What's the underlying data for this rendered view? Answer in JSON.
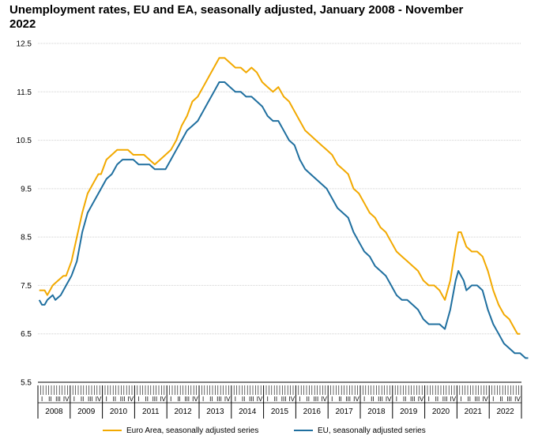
{
  "title": "Unemployment rates, EU and EA, seasonally adjusted, January 2008 - November 2022",
  "chart_data": {
    "type": "line",
    "title": "Unemployment rates, EU and EA, seasonally adjusted, January 2008 - November 2022",
    "xlabel": "",
    "ylabel": "",
    "ylim": [
      5.5,
      12.5
    ],
    "yticks": [
      "5.5",
      "6.5",
      "7.5",
      "8.5",
      "9.5",
      "10.5",
      "11.5",
      "12.5"
    ],
    "years": [
      "2008",
      "2009",
      "2010",
      "2011",
      "2012",
      "2013",
      "2014",
      "2015",
      "2016",
      "2017",
      "2018",
      "2019",
      "2020",
      "2021",
      "2022"
    ],
    "quarters": [
      "I",
      "II",
      "III",
      "IV"
    ],
    "grid": "horizontal",
    "legend_position": "bottom",
    "x_unit": "months since January 2008 (0 = Jan 2008, 178 = Nov 2022)",
    "series": [
      {
        "name": "Euro Area, seasonally adjusted series",
        "color": "#f2a900",
        "points": [
          [
            0,
            7.4
          ],
          [
            2,
            7.4
          ],
          [
            3,
            7.3
          ],
          [
            5,
            7.5
          ],
          [
            7,
            7.6
          ],
          [
            9,
            7.7
          ],
          [
            10,
            7.7
          ],
          [
            12,
            8.0
          ],
          [
            14,
            8.5
          ],
          [
            16,
            9.0
          ],
          [
            18,
            9.4
          ],
          [
            20,
            9.6
          ],
          [
            22,
            9.8
          ],
          [
            23,
            9.8
          ],
          [
            25,
            10.1
          ],
          [
            27,
            10.2
          ],
          [
            29,
            10.3
          ],
          [
            31,
            10.3
          ],
          [
            33,
            10.3
          ],
          [
            35,
            10.2
          ],
          [
            37,
            10.2
          ],
          [
            39,
            10.2
          ],
          [
            41,
            10.1
          ],
          [
            43,
            10.0
          ],
          [
            45,
            10.1
          ],
          [
            47,
            10.2
          ],
          [
            49,
            10.3
          ],
          [
            51,
            10.5
          ],
          [
            53,
            10.8
          ],
          [
            55,
            11.0
          ],
          [
            57,
            11.3
          ],
          [
            59,
            11.4
          ],
          [
            61,
            11.6
          ],
          [
            63,
            11.8
          ],
          [
            65,
            12.0
          ],
          [
            67,
            12.2
          ],
          [
            69,
            12.2
          ],
          [
            71,
            12.1
          ],
          [
            73,
            12.0
          ],
          [
            75,
            12.0
          ],
          [
            77,
            11.9
          ],
          [
            79,
            12.0
          ],
          [
            81,
            11.9
          ],
          [
            83,
            11.7
          ],
          [
            85,
            11.6
          ],
          [
            87,
            11.5
          ],
          [
            89,
            11.6
          ],
          [
            91,
            11.4
          ],
          [
            93,
            11.3
          ],
          [
            95,
            11.1
          ],
          [
            97,
            10.9
          ],
          [
            99,
            10.7
          ],
          [
            101,
            10.6
          ],
          [
            103,
            10.5
          ],
          [
            105,
            10.4
          ],
          [
            107,
            10.3
          ],
          [
            109,
            10.2
          ],
          [
            111,
            10.0
          ],
          [
            113,
            9.9
          ],
          [
            115,
            9.8
          ],
          [
            117,
            9.5
          ],
          [
            119,
            9.4
          ],
          [
            121,
            9.2
          ],
          [
            123,
            9.0
          ],
          [
            125,
            8.9
          ],
          [
            127,
            8.7
          ],
          [
            129,
            8.6
          ],
          [
            131,
            8.4
          ],
          [
            133,
            8.2
          ],
          [
            135,
            8.1
          ],
          [
            137,
            8.0
          ],
          [
            139,
            7.9
          ],
          [
            141,
            7.8
          ],
          [
            143,
            7.6
          ],
          [
            145,
            7.5
          ],
          [
            147,
            7.5
          ],
          [
            149,
            7.4
          ],
          [
            151,
            7.2
          ],
          [
            153,
            7.6
          ],
          [
            155,
            8.3
          ],
          [
            156,
            8.6
          ],
          [
            157,
            8.6
          ],
          [
            159,
            8.3
          ],
          [
            161,
            8.2
          ],
          [
            163,
            8.2
          ],
          [
            165,
            8.1
          ],
          [
            167,
            7.8
          ],
          [
            169,
            7.4
          ],
          [
            171,
            7.1
          ],
          [
            173,
            6.9
          ],
          [
            175,
            6.8
          ],
          [
            176,
            6.7
          ],
          [
            177,
            6.6
          ],
          [
            178,
            6.5
          ],
          [
            179,
            6.5
          ]
        ]
      },
      {
        "name": "EU, seasonally adjusted series",
        "color": "#1f6f9f",
        "points": [
          [
            0,
            7.2
          ],
          [
            1,
            7.1
          ],
          [
            2,
            7.1
          ],
          [
            3,
            7.2
          ],
          [
            5,
            7.3
          ],
          [
            6,
            7.2
          ],
          [
            8,
            7.3
          ],
          [
            10,
            7.5
          ],
          [
            12,
            7.7
          ],
          [
            14,
            8.0
          ],
          [
            16,
            8.6
          ],
          [
            18,
            9.0
          ],
          [
            20,
            9.2
          ],
          [
            22,
            9.4
          ],
          [
            23,
            9.5
          ],
          [
            25,
            9.7
          ],
          [
            27,
            9.8
          ],
          [
            29,
            10.0
          ],
          [
            31,
            10.1
          ],
          [
            33,
            10.1
          ],
          [
            35,
            10.1
          ],
          [
            37,
            10.0
          ],
          [
            39,
            10.0
          ],
          [
            41,
            10.0
          ],
          [
            43,
            9.9
          ],
          [
            45,
            9.9
          ],
          [
            47,
            9.9
          ],
          [
            49,
            10.1
          ],
          [
            51,
            10.3
          ],
          [
            53,
            10.5
          ],
          [
            55,
            10.7
          ],
          [
            57,
            10.8
          ],
          [
            59,
            10.9
          ],
          [
            61,
            11.1
          ],
          [
            63,
            11.3
          ],
          [
            65,
            11.5
          ],
          [
            67,
            11.7
          ],
          [
            69,
            11.7
          ],
          [
            71,
            11.6
          ],
          [
            73,
            11.5
          ],
          [
            75,
            11.5
          ],
          [
            77,
            11.4
          ],
          [
            79,
            11.4
          ],
          [
            81,
            11.3
          ],
          [
            83,
            11.2
          ],
          [
            85,
            11.0
          ],
          [
            87,
            10.9
          ],
          [
            89,
            10.9
          ],
          [
            91,
            10.7
          ],
          [
            93,
            10.5
          ],
          [
            95,
            10.4
          ],
          [
            97,
            10.1
          ],
          [
            99,
            9.9
          ],
          [
            101,
            9.8
          ],
          [
            103,
            9.7
          ],
          [
            105,
            9.6
          ],
          [
            107,
            9.5
          ],
          [
            109,
            9.3
          ],
          [
            111,
            9.1
          ],
          [
            113,
            9.0
          ],
          [
            115,
            8.9
          ],
          [
            117,
            8.6
          ],
          [
            119,
            8.4
          ],
          [
            121,
            8.2
          ],
          [
            123,
            8.1
          ],
          [
            125,
            7.9
          ],
          [
            127,
            7.8
          ],
          [
            129,
            7.7
          ],
          [
            131,
            7.5
          ],
          [
            133,
            7.3
          ],
          [
            135,
            7.2
          ],
          [
            137,
            7.2
          ],
          [
            139,
            7.1
          ],
          [
            141,
            7.0
          ],
          [
            143,
            6.8
          ],
          [
            145,
            6.7
          ],
          [
            147,
            6.7
          ],
          [
            149,
            6.7
          ],
          [
            151,
            6.6
          ],
          [
            153,
            7.0
          ],
          [
            155,
            7.6
          ],
          [
            156,
            7.8
          ],
          [
            158,
            7.6
          ],
          [
            159,
            7.4
          ],
          [
            161,
            7.5
          ],
          [
            163,
            7.5
          ],
          [
            165,
            7.4
          ],
          [
            167,
            7.0
          ],
          [
            169,
            6.7
          ],
          [
            171,
            6.5
          ],
          [
            173,
            6.3
          ],
          [
            175,
            6.2
          ],
          [
            177,
            6.1
          ],
          [
            179,
            6.1
          ],
          [
            181,
            6.0
          ],
          [
            182,
            6.0
          ]
        ]
      }
    ]
  }
}
